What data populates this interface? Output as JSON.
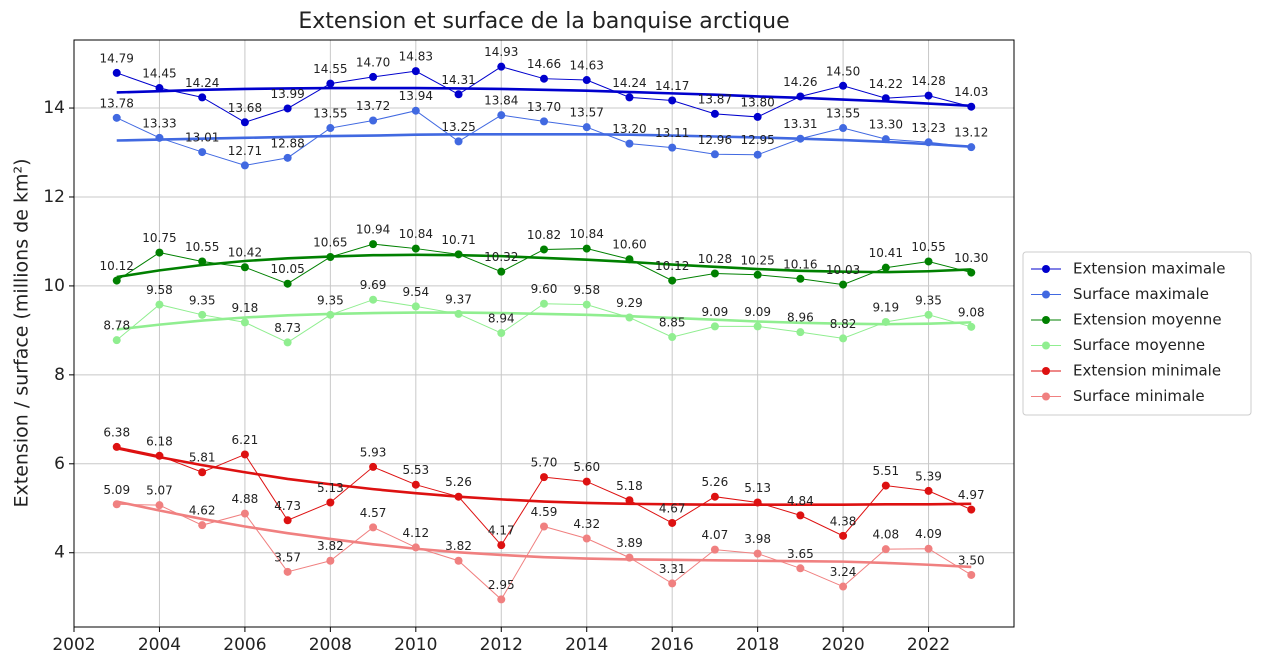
{
  "chart_data": {
    "type": "line",
    "title": "Extension et surface de la banquise arctique",
    "ylabel": "Extension / surface (millions de km²)",
    "x": [
      2003,
      2004,
      2005,
      2006,
      2007,
      2008,
      2009,
      2010,
      2011,
      2012,
      2013,
      2014,
      2015,
      2016,
      2017,
      2018,
      2019,
      2020,
      2021,
      2022,
      2023
    ],
    "xlim": [
      2002,
      2024
    ],
    "xticks": [
      2002,
      2004,
      2006,
      2008,
      2010,
      2012,
      2014,
      2016,
      2018,
      2020,
      2022
    ],
    "ylim": [
      2.33,
      15.53
    ],
    "yticks": [
      4,
      6,
      8,
      10,
      12,
      14
    ],
    "grid": true,
    "legend": "right",
    "series": [
      {
        "name": "Extension maximale",
        "color": "#0000cd",
        "values": [
          14.79,
          14.45,
          14.24,
          13.68,
          13.99,
          14.55,
          14.7,
          14.83,
          14.31,
          14.93,
          14.66,
          14.63,
          14.24,
          14.17,
          13.87,
          13.8,
          14.26,
          14.5,
          14.22,
          14.28,
          14.03
        ],
        "value_labels": [
          "14.79",
          "14.45",
          "14.24",
          "13.68",
          "13.99",
          "14.55",
          "14.70",
          "14.83",
          "14.31",
          "14.93",
          "14.66",
          "14.63",
          "14.24",
          "14.17",
          "13.87",
          "13.80",
          "14.26",
          "14.50",
          "14.22",
          "14.28",
          "14.03"
        ],
        "trend": [
          14.35,
          14.38,
          14.41,
          14.43,
          14.44,
          14.45,
          14.45,
          14.45,
          14.44,
          14.43,
          14.41,
          14.39,
          14.36,
          14.33,
          14.3,
          14.26,
          14.23,
          14.19,
          14.15,
          14.1,
          14.05
        ]
      },
      {
        "name": "Surface maximale",
        "color": "#4169e1",
        "values": [
          13.78,
          13.33,
          13.01,
          12.71,
          12.88,
          13.55,
          13.72,
          13.94,
          13.25,
          13.84,
          13.7,
          13.57,
          13.2,
          13.11,
          12.96,
          12.95,
          13.31,
          13.55,
          13.3,
          13.23,
          13.12
        ],
        "value_labels": [
          "13.78",
          "13.33",
          "13.01",
          "12.71",
          "12.88",
          "13.55",
          "13.72",
          "13.94",
          "13.25",
          "13.84",
          "13.70",
          "13.57",
          "13.20",
          "13.11",
          "12.96",
          "12.95",
          "13.31",
          "13.55",
          "13.30",
          "13.23",
          "13.12"
        ],
        "trend": [
          13.27,
          13.29,
          13.31,
          13.33,
          13.35,
          13.37,
          13.38,
          13.4,
          13.41,
          13.41,
          13.41,
          13.41,
          13.4,
          13.38,
          13.36,
          13.34,
          13.31,
          13.28,
          13.24,
          13.19,
          13.13
        ]
      },
      {
        "name": "Extension moyenne",
        "color": "#008000",
        "values": [
          10.12,
          10.75,
          10.55,
          10.42,
          10.05,
          10.65,
          10.94,
          10.84,
          10.71,
          10.32,
          10.82,
          10.84,
          10.6,
          10.12,
          10.28,
          10.25,
          10.16,
          10.03,
          10.41,
          10.55,
          10.3
        ],
        "value_labels": [
          "10.12",
          "10.75",
          "10.55",
          "10.42",
          "10.05",
          "10.65",
          "10.94",
          "10.84",
          "10.71",
          "10.32",
          "10.82",
          "10.84",
          "10.60",
          "10.12",
          "10.28",
          "10.25",
          "10.16",
          "10.03",
          "10.41",
          "10.55",
          "10.30"
        ],
        "trend": [
          10.2,
          10.35,
          10.47,
          10.56,
          10.62,
          10.66,
          10.69,
          10.7,
          10.69,
          10.67,
          10.63,
          10.59,
          10.54,
          10.48,
          10.43,
          10.38,
          10.34,
          10.32,
          10.31,
          10.33,
          10.37
        ]
      },
      {
        "name": "Surface moyenne",
        "color": "#90ee90",
        "values": [
          8.78,
          9.58,
          9.35,
          9.18,
          8.73,
          9.35,
          9.69,
          9.54,
          9.37,
          8.94,
          9.6,
          9.58,
          9.29,
          8.85,
          9.09,
          9.09,
          8.96,
          8.82,
          9.19,
          9.35,
          9.08
        ],
        "value_labels": [
          "8.78",
          "9.58",
          "9.35",
          "9.18",
          "8.73",
          "9.35",
          "9.69",
          "9.54",
          "9.37",
          "8.94",
          "9.60",
          "9.58",
          "9.29",
          "8.85",
          "9.09",
          "9.09",
          "8.96",
          "8.82",
          "9.19",
          "9.35",
          "9.08"
        ],
        "trend": [
          9.02,
          9.13,
          9.22,
          9.29,
          9.34,
          9.37,
          9.39,
          9.4,
          9.4,
          9.39,
          9.37,
          9.35,
          9.32,
          9.28,
          9.24,
          9.2,
          9.17,
          9.15,
          9.14,
          9.15,
          9.18
        ]
      },
      {
        "name": "Extension minimale",
        "color": "#dd1111",
        "values": [
          6.38,
          6.18,
          5.81,
          6.21,
          4.73,
          5.13,
          5.93,
          5.53,
          5.26,
          4.17,
          5.7,
          5.6,
          5.18,
          4.67,
          5.26,
          5.13,
          4.84,
          4.38,
          5.51,
          5.39,
          4.97
        ],
        "value_labels": [
          "6.38",
          "6.18",
          "5.81",
          "6.21",
          "4.73",
          "5.13",
          "5.93",
          "5.53",
          "5.26",
          "4.17",
          "5.70",
          "5.60",
          "5.18",
          "4.67",
          "5.26",
          "5.13",
          "4.84",
          "4.38",
          "5.51",
          "5.39",
          "4.97"
        ],
        "trend": [
          6.35,
          6.15,
          5.97,
          5.81,
          5.66,
          5.54,
          5.43,
          5.34,
          5.26,
          5.2,
          5.15,
          5.12,
          5.1,
          5.09,
          5.08,
          5.08,
          5.08,
          5.08,
          5.09,
          5.09,
          5.1
        ]
      },
      {
        "name": "Surface minimale",
        "color": "#f08080",
        "values": [
          5.09,
          5.07,
          4.62,
          4.88,
          3.57,
          3.82,
          4.57,
          4.12,
          3.82,
          2.95,
          4.59,
          4.32,
          3.89,
          3.31,
          4.07,
          3.98,
          3.65,
          3.24,
          4.08,
          4.09,
          3.5
        ],
        "value_labels": [
          "5.09",
          "5.07",
          "4.62",
          "4.88",
          "3.57",
          "3.82",
          "4.57",
          "4.12",
          "3.82",
          "2.95",
          "4.59",
          "4.32",
          "3.89",
          "3.31",
          "4.07",
          "3.98",
          "3.65",
          "3.24",
          "4.08",
          "4.09",
          "3.50"
        ],
        "trend": [
          5.15,
          4.95,
          4.76,
          4.59,
          4.44,
          4.31,
          4.19,
          4.09,
          4.01,
          3.95,
          3.9,
          3.87,
          3.85,
          3.84,
          3.83,
          3.82,
          3.81,
          3.8,
          3.77,
          3.73,
          3.68
        ]
      }
    ]
  }
}
